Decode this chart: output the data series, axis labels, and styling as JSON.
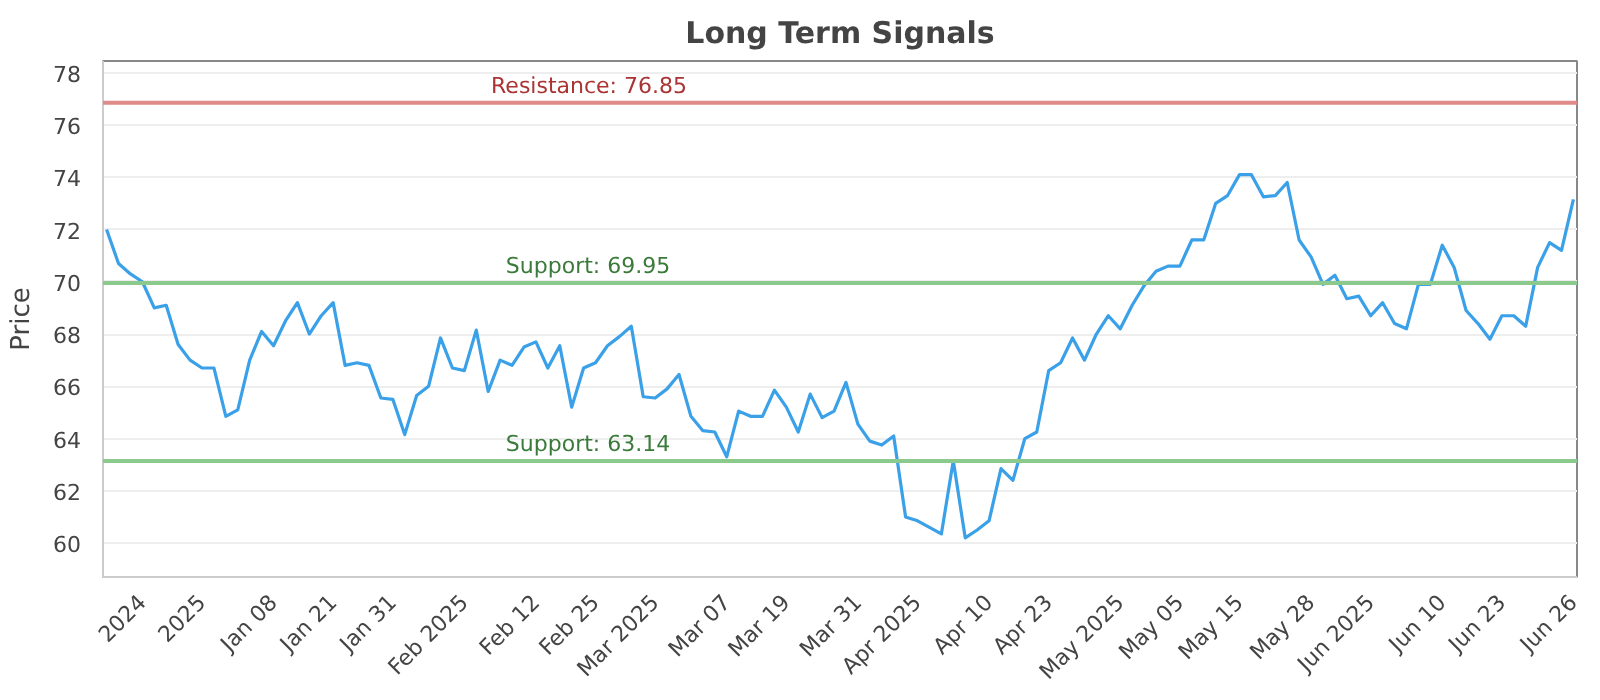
{
  "chart_data": {
    "type": "line",
    "title": "Long Term Signals",
    "ylabel": "Price",
    "categories": [
      null,
      null,
      null,
      "2024",
      null,
      null,
      null,
      null,
      "2025",
      null,
      null,
      null,
      null,
      null,
      "Jan 08",
      null,
      null,
      null,
      null,
      "Jan 21",
      null,
      null,
      null,
      null,
      "Jan 31",
      null,
      null,
      null,
      null,
      null,
      "Feb 2025",
      null,
      null,
      null,
      null,
      null,
      "Feb 12",
      null,
      null,
      null,
      null,
      "Feb 25",
      null,
      null,
      null,
      null,
      "Mar 2025",
      null,
      null,
      null,
      null,
      null,
      "Mar 07",
      null,
      null,
      null,
      null,
      "Mar 19",
      null,
      null,
      null,
      null,
      null,
      "Mar 31",
      null,
      null,
      null,
      null,
      "Apr 2025",
      null,
      null,
      null,
      null,
      null,
      "Apr 10",
      null,
      null,
      null,
      null,
      "Apr 23",
      null,
      null,
      null,
      null,
      null,
      "May 2025",
      null,
      null,
      null,
      null,
      "May 05",
      null,
      null,
      null,
      null,
      "May 15",
      null,
      null,
      null,
      null,
      null,
      "May 28",
      null,
      null,
      null,
      null,
      "Jun 2025",
      null,
      null,
      null,
      null,
      null,
      "Jun 10",
      null,
      null,
      null,
      null,
      "Jun 23",
      null,
      null,
      null,
      null,
      null,
      "Jun 26"
    ],
    "series": [
      {
        "color": "#3aa0e8",
        "values": [
          72.0,
          70.7,
          70.3,
          70.0,
          69.0,
          69.1,
          67.6,
          67.0,
          66.7,
          66.7,
          64.85,
          65.1,
          67.0,
          68.1,
          67.55,
          68.5,
          69.2,
          68.0,
          68.7,
          69.2,
          66.8,
          66.9,
          66.8,
          65.55,
          65.5,
          64.15,
          65.65,
          66.0,
          67.85,
          66.7,
          66.6,
          68.15,
          65.8,
          67.0,
          66.8,
          67.5,
          67.7,
          66.7,
          67.55,
          65.2,
          66.7,
          66.9,
          67.55,
          67.9,
          68.3,
          65.6,
          65.55,
          65.9,
          66.45,
          64.85,
          64.3,
          64.25,
          63.3,
          65.05,
          64.85,
          64.85,
          65.85,
          65.2,
          64.25,
          65.7,
          64.8,
          65.05,
          66.15,
          64.55,
          63.9,
          63.75,
          64.1,
          61.0,
          60.85,
          60.6,
          60.35,
          63.15,
          60.2,
          60.5,
          60.85,
          62.85,
          62.4,
          64.0,
          64.25,
          66.6,
          66.9,
          67.85,
          67.0,
          68.0,
          68.7,
          68.2,
          69.1,
          69.85,
          70.4,
          70.6,
          70.6,
          71.6,
          71.6,
          73.0,
          73.3,
          74.1,
          74.1,
          73.25,
          73.3,
          73.8,
          71.6,
          70.95,
          69.9,
          70.25,
          69.35,
          69.45,
          68.7,
          69.2,
          68.4,
          68.2,
          69.9,
          69.9,
          71.4,
          70.55,
          68.9,
          68.4,
          67.8,
          68.7,
          68.7,
          68.3,
          70.55,
          71.5,
          71.2,
          73.15
        ]
      }
    ],
    "ylim": [
      58.7,
      78.45
    ],
    "yticks": [
      60,
      62,
      64,
      66,
      68,
      70,
      72,
      74,
      76,
      78
    ],
    "grid": "y",
    "marker": "none",
    "line_style": "solid",
    "ref_lines": [
      {
        "axis": "y",
        "value": 76.85,
        "label": "Resistance: 76.85",
        "color": "#e08a8a"
      },
      {
        "axis": "y",
        "value": 69.95,
        "label": "Support: 69.95",
        "color": "#8cc98c"
      },
      {
        "axis": "y",
        "value": 63.14,
        "label": "Support: 63.14",
        "color": "#8cc98c"
      }
    ]
  }
}
